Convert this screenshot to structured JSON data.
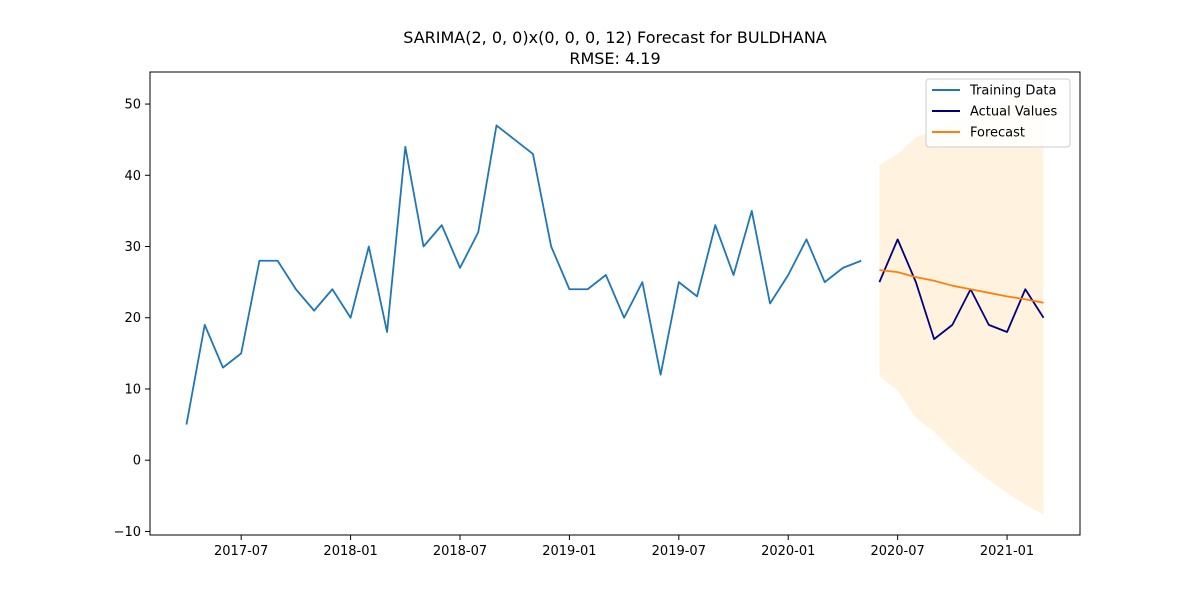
{
  "chart_data": {
    "type": "line",
    "title": "SARIMA(2, 0, 0)x(0, 0, 0, 12) Forecast for BULDHANA",
    "subtitle": "RMSE: 4.19",
    "xlabel": "",
    "ylabel": "",
    "ylim": [
      -10.5,
      54.5
    ],
    "xlim": [
      "2017-02-01",
      "2021-05-01"
    ],
    "yticks": [
      -10,
      0,
      10,
      20,
      30,
      40,
      50
    ],
    "xticks": [
      "2017-07",
      "2018-01",
      "2018-07",
      "2019-01",
      "2019-07",
      "2020-01",
      "2020-07",
      "2021-01"
    ],
    "grid": false,
    "legend": "top-right",
    "series": [
      {
        "name": "Training Data",
        "color": "#1f77b4",
        "x": [
          "2017-04",
          "2017-05",
          "2017-06",
          "2017-07",
          "2017-08",
          "2017-09",
          "2017-10",
          "2017-11",
          "2017-12",
          "2018-01",
          "2018-02",
          "2018-03",
          "2018-04",
          "2018-05",
          "2018-06",
          "2018-07",
          "2018-08",
          "2018-09",
          "2018-10",
          "2018-11",
          "2018-12",
          "2019-01",
          "2019-02",
          "2019-03",
          "2019-04",
          "2019-05",
          "2019-06",
          "2019-07",
          "2019-08",
          "2019-09",
          "2019-10",
          "2019-11",
          "2019-12",
          "2020-01",
          "2020-02",
          "2020-03",
          "2020-04",
          "2020-05"
        ],
        "values": [
          5,
          19,
          13,
          15,
          28,
          28,
          24,
          21,
          24,
          20,
          30,
          18,
          44,
          30,
          33,
          27,
          32,
          47,
          45,
          43,
          30,
          24,
          24,
          26,
          20,
          25,
          12,
          25,
          23,
          33,
          26,
          35,
          22,
          26,
          31,
          25,
          27,
          28
        ]
      },
      {
        "name": "Actual Values",
        "color": "#000080",
        "x": [
          "2020-06",
          "2020-07",
          "2020-08",
          "2020-09",
          "2020-10",
          "2020-11",
          "2020-12",
          "2021-01",
          "2021-02",
          "2021-03"
        ],
        "values": [
          25,
          31,
          25,
          17,
          19,
          24,
          19,
          18,
          24,
          20
        ]
      },
      {
        "name": "Forecast",
        "color": "#ff7f0e",
        "x": [
          "2020-06",
          "2020-07",
          "2020-08",
          "2020-09",
          "2020-10",
          "2020-11",
          "2020-12",
          "2021-01",
          "2021-02",
          "2021-03"
        ],
        "values": [
          26.7,
          26.4,
          25.7,
          25.2,
          24.5,
          24.0,
          23.5,
          23.0,
          22.6,
          22.1
        ]
      }
    ],
    "confidence_band": {
      "color": "#fff3e0",
      "x": [
        "2020-06",
        "2020-07",
        "2020-08",
        "2020-09",
        "2020-10",
        "2020-11",
        "2020-12",
        "2021-01",
        "2021-02",
        "2021-03"
      ],
      "lower": [
        11.8,
        9.8,
        6.0,
        4.0,
        1.4,
        -0.8,
        -2.8,
        -4.6,
        -6.2,
        -7.7
      ],
      "upper": [
        41.5,
        43.0,
        45.3,
        46.4,
        47.5,
        48.5,
        49.6,
        50.6,
        51.2,
        51.8
      ]
    }
  }
}
